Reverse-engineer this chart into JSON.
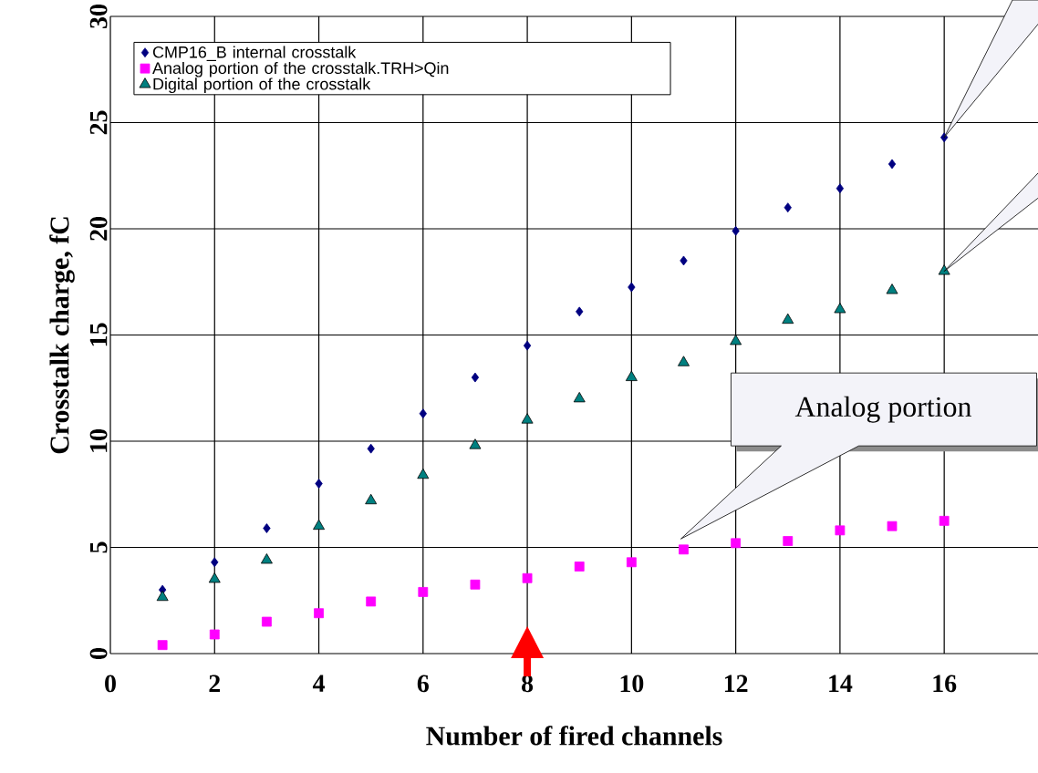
{
  "chart_data": {
    "type": "scatter",
    "xlabel": "Number of fired channels",
    "ylabel": "Crosstalk charge, fC",
    "x": [
      1,
      2,
      3,
      4,
      5,
      6,
      7,
      8,
      9,
      10,
      11,
      12,
      13,
      14,
      15,
      16
    ],
    "series": [
      {
        "name": "CMP16_B internal crosstalk",
        "color": "#000080",
        "marker": "diamond",
        "values": [
          3.0,
          4.3,
          5.9,
          8.0,
          9.65,
          11.3,
          13.0,
          14.5,
          16.1,
          17.25,
          18.5,
          19.9,
          21.0,
          21.9,
          23.05,
          24.3
        ]
      },
      {
        "name": "Analog portion of the crosstalk.TRH>Qin",
        "color": "#ff00ff",
        "marker": "square",
        "values": [
          0.4,
          0.9,
          1.5,
          1.9,
          2.45,
          2.9,
          3.25,
          3.55,
          4.1,
          4.3,
          4.9,
          5.2,
          5.3,
          5.8,
          6.0,
          6.25
        ]
      },
      {
        "name": "Digital portion of the crosstalk",
        "color": "#008080",
        "marker": "triangle",
        "values": [
          2.65,
          3.5,
          4.4,
          6.0,
          7.2,
          8.4,
          9.8,
          11.0,
          12.0,
          13.0,
          13.7,
          14.7,
          15.7,
          16.2,
          17.1,
          18.0
        ]
      }
    ],
    "xlim": [
      0,
      17.8
    ],
    "ylim": [
      0,
      30
    ],
    "xticks": [
      0,
      2,
      4,
      6,
      8,
      10,
      12,
      14,
      16
    ],
    "yticks": [
      0,
      5,
      10,
      15,
      20,
      25,
      30
    ],
    "grid": true,
    "legend": "top left",
    "annotations": [
      "Analog portion"
    ]
  }
}
